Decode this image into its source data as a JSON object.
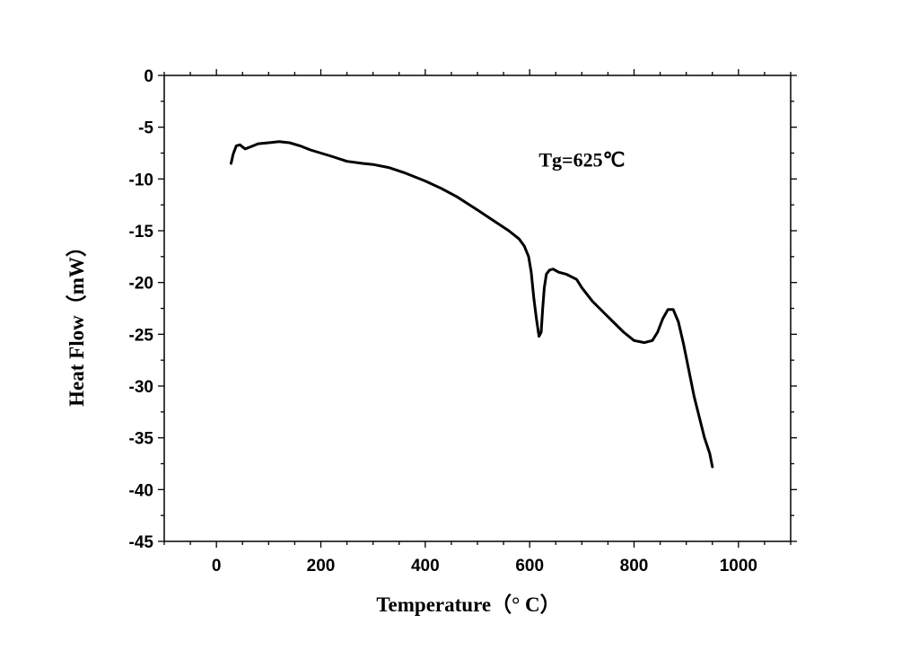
{
  "chart_data": {
    "type": "line",
    "xlabel": "Temperature（° C）",
    "ylabel": "Heat Flow（mW）",
    "xlim": [
      -100,
      1100
    ],
    "ylim": [
      -45,
      0
    ],
    "xticks": [
      0,
      200,
      400,
      600,
      800,
      1000
    ],
    "yticks": [
      0,
      -5,
      -10,
      -15,
      -20,
      -25,
      -30,
      -35,
      -40,
      -45
    ],
    "xtick_labels": [
      "0",
      "200",
      "400",
      "600",
      "800",
      "1000"
    ],
    "ytick_labels": [
      "0",
      "-5",
      "-10",
      "-15",
      "-20",
      "-25",
      "-30",
      "-35",
      "-40",
      "-45"
    ],
    "grid": false,
    "line_color": "#000000",
    "annotations": [
      {
        "text": "Tg=625℃",
        "x": 700,
        "y": -8.3
      }
    ],
    "series": [
      {
        "x": [
          28,
          32,
          38,
          45,
          55,
          65,
          80,
          100,
          120,
          140,
          160,
          180,
          200,
          220,
          250,
          280,
          300,
          330,
          360,
          400,
          430,
          460,
          500,
          530,
          560,
          580,
          590,
          598,
          603,
          608,
          613,
          618,
          622,
          625,
          628,
          632,
          638,
          645,
          655,
          670,
          690,
          700,
          720,
          740,
          760,
          780,
          800,
          820,
          835,
          845,
          855,
          865,
          875,
          885,
          895,
          905,
          915,
          925,
          935,
          945,
          950
        ],
        "y": [
          -8.5,
          -7.6,
          -6.8,
          -6.7,
          -7.1,
          -6.9,
          -6.6,
          -6.5,
          -6.4,
          -6.5,
          -6.8,
          -7.2,
          -7.5,
          -7.8,
          -8.3,
          -8.5,
          -8.6,
          -8.9,
          -9.4,
          -10.2,
          -10.9,
          -11.7,
          -13.0,
          -14.0,
          -15.0,
          -15.8,
          -16.5,
          -17.5,
          -19.0,
          -21.5,
          -23.5,
          -25.2,
          -24.8,
          -22.5,
          -20.5,
          -19.2,
          -18.8,
          -18.7,
          -19.0,
          -19.2,
          -19.7,
          -20.5,
          -21.8,
          -22.8,
          -23.8,
          -24.8,
          -25.6,
          -25.8,
          -25.6,
          -24.8,
          -23.5,
          -22.6,
          -22.6,
          -23.8,
          -26.0,
          -28.5,
          -31.0,
          -33.0,
          -35.0,
          -36.5,
          -37.8
        ]
      }
    ]
  }
}
